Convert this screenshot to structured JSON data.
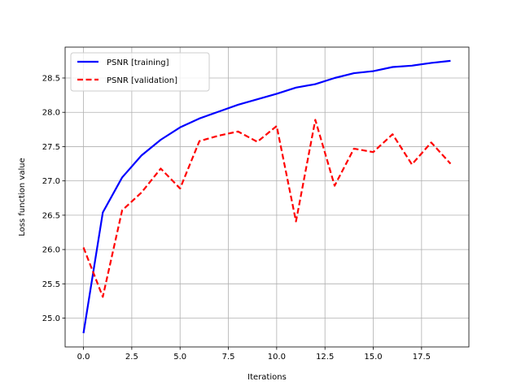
{
  "chart_data": {
    "type": "line",
    "title": "",
    "xlabel": "Iterations",
    "ylabel": "Loss function value",
    "xlim": [
      -0.95,
      19.95
    ],
    "ylim": [
      24.58,
      28.95
    ],
    "xticks": [
      0.0,
      2.5,
      5.0,
      7.5,
      10.0,
      12.5,
      15.0,
      17.5
    ],
    "xtick_labels": [
      "0.0",
      "2.5",
      "5.0",
      "7.5",
      "10.0",
      "12.5",
      "15.0",
      "17.5"
    ],
    "yticks": [
      25.0,
      25.5,
      26.0,
      26.5,
      27.0,
      27.5,
      28.0,
      28.5
    ],
    "ytick_labels": [
      "25.0",
      "25.5",
      "26.0",
      "26.5",
      "27.0",
      "27.5",
      "28.0",
      "28.5"
    ],
    "grid": true,
    "legend_position": "top-left",
    "x": [
      0,
      1,
      2,
      3,
      4,
      5,
      6,
      7,
      8,
      9,
      10,
      11,
      12,
      13,
      14,
      15,
      16,
      17,
      18,
      19
    ],
    "series": [
      {
        "name": "PSNR [training]",
        "color": "#0000ff",
        "style": "solid",
        "values": [
          24.78,
          26.54,
          27.05,
          27.37,
          27.6,
          27.78,
          27.91,
          28.01,
          28.11,
          28.19,
          28.27,
          28.36,
          28.41,
          28.5,
          28.57,
          28.6,
          28.66,
          28.68,
          28.72,
          28.75
        ]
      },
      {
        "name": "PSNR [validation]",
        "color": "#ff0000",
        "style": "dashed",
        "values": [
          26.03,
          25.31,
          26.57,
          26.83,
          27.18,
          26.89,
          27.58,
          27.66,
          27.72,
          27.57,
          27.8,
          26.41,
          27.89,
          26.93,
          27.47,
          27.42,
          27.68,
          27.24,
          27.56,
          27.25
        ]
      }
    ]
  }
}
